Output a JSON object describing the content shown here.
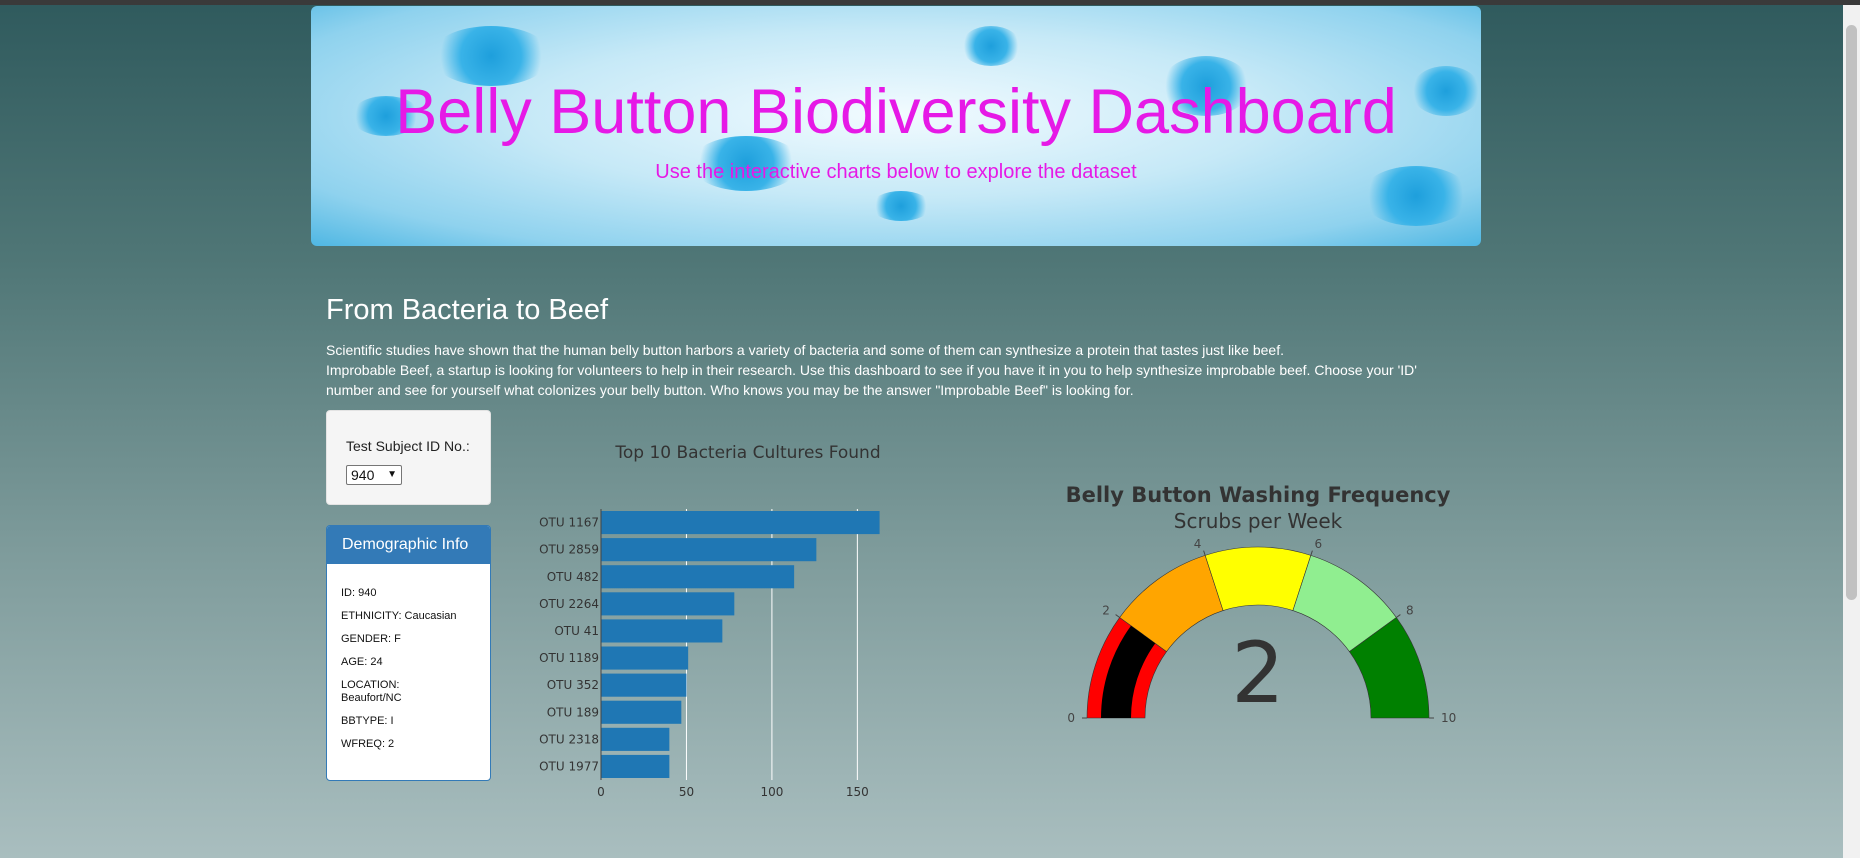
{
  "header": {
    "title": "Belly Button Biodiversity Dashboard",
    "subtitle": "Use the interactive charts below to explore the dataset"
  },
  "intro": {
    "heading": "From Bacteria to Beef",
    "line1": "Scientific studies have shown that the human belly button harbors a variety of bacteria and some of them can synthesize a protein that tastes just like beef.",
    "line2": "Improbable Beef, a startup is looking for volunteers to help in their research. Use this dashboard to see if you have it in you to help synthesize improbable beef. Choose your 'ID' number and see for yourself what colonizes your belly button. Who knows you may be the answer \"Improbable Beef\" is looking for."
  },
  "selector": {
    "label": "Test Subject ID No.:",
    "selected": "940"
  },
  "demographics": {
    "heading": "Demographic Info",
    "rows": [
      "ID: 940",
      "ETHNICITY: Caucasian",
      "GENDER: F",
      "AGE: 24",
      "LOCATION: Beaufort/NC",
      "BBTYPE: I",
      "WFREQ: 2"
    ]
  },
  "colors": {
    "title_magenta": "#e619e6",
    "bar_blue": "#1f77b4",
    "panel_blue": "#337ab7",
    "gauge_red": "#ff0000",
    "gauge_black": "#000000",
    "gauge_orange": "#ffa500",
    "gauge_yellow": "#ffff00",
    "gauge_lightgreen": "#90ee90",
    "gauge_green": "#008000"
  },
  "chart_data": [
    {
      "type": "bar",
      "orientation": "horizontal",
      "title": "Top 10 Bacteria Cultures Found",
      "categories": [
        "OTU 1167",
        "OTU 2859",
        "OTU 482",
        "OTU 2264",
        "OTU 41",
        "OTU 1189",
        "OTU 352",
        "OTU 189",
        "OTU 2318",
        "OTU 1977"
      ],
      "values": [
        163,
        126,
        113,
        78,
        71,
        51,
        50,
        47,
        40,
        40
      ],
      "xlim": [
        0,
        165
      ],
      "xticks": [
        0,
        50,
        100,
        150
      ],
      "grid": true
    },
    {
      "type": "gauge",
      "title": "Belly Button Washing Frequency",
      "subtitle": "Scrubs per Week",
      "value": 2,
      "range": [
        0,
        10
      ],
      "ticks": [
        0,
        2,
        4,
        6,
        8,
        10
      ],
      "steps": [
        {
          "range": [
            0,
            2
          ],
          "color": "#ff0000"
        },
        {
          "range": [
            2,
            4
          ],
          "color": "#ffa500"
        },
        {
          "range": [
            4,
            6
          ],
          "color": "#ffff00"
        },
        {
          "range": [
            6,
            8
          ],
          "color": "#90ee90"
        },
        {
          "range": [
            8,
            10
          ],
          "color": "#008000"
        }
      ],
      "bar_color": "#000000"
    }
  ]
}
